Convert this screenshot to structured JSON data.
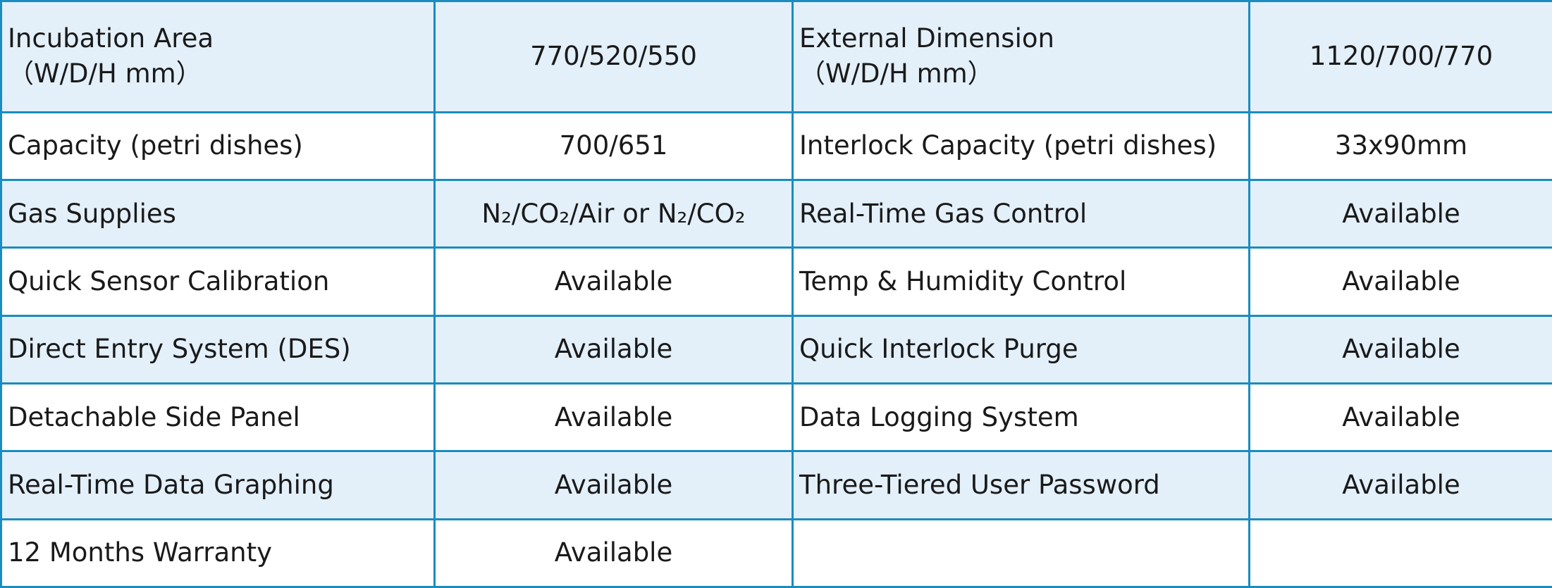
{
  "colors": {
    "border": "#1a8cbf",
    "shaded_row": "#e3f0fa"
  },
  "rows": [
    {
      "shade": true,
      "l_label": "Incubation Area",
      "l_label2": "（W/D/H mm）",
      "l_value": "770/520/550",
      "r_label": "External Dimension",
      "r_label2": "（W/D/H mm）",
      "r_value": "1120/700/770"
    },
    {
      "shade": false,
      "l_label": "Capacity (petri dishes)",
      "l_value": "700/651",
      "r_label": "Interlock Capacity (petri dishes)",
      "r_value": "33x90mm"
    },
    {
      "shade": true,
      "l_label": "Gas Supplies",
      "l_value": "N₂/CO₂/Air  or  N₂/CO₂",
      "r_label": "Real-Time Gas Control",
      "r_value": "Available"
    },
    {
      "shade": false,
      "l_label": "Quick Sensor Calibration",
      "l_value": "Available",
      "r_label": "Temp & Humidity Control",
      "r_value": "Available"
    },
    {
      "shade": true,
      "l_label": "Direct Entry System (DES)",
      "l_value": "Available",
      "r_label": "Quick Interlock Purge",
      "r_value": "Available"
    },
    {
      "shade": false,
      "l_label": "Detachable Side Panel",
      "l_value": "Available",
      "r_label": "Data Logging System",
      "r_value": "Available"
    },
    {
      "shade": true,
      "l_label": "Real-Time Data Graphing",
      "l_value": "Available",
      "r_label": "Three-Tiered User Password",
      "r_value": "Available"
    },
    {
      "shade": false,
      "l_label": "12 Months Warranty",
      "l_value": "Available",
      "r_label": "",
      "r_value": ""
    }
  ]
}
